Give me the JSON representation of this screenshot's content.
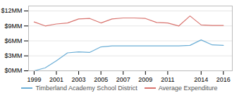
{
  "chart_data": {
    "type": "line",
    "x": [
      1999,
      2000,
      2001,
      2002,
      2003,
      2004,
      2005,
      2006,
      2007,
      2008,
      2009,
      2010,
      2011,
      2012,
      2013,
      2014,
      2015,
      2016
    ],
    "series": [
      {
        "name": "Timberland Academy School District",
        "color": "#6baed6",
        "values": [
          0,
          600000,
          2000000,
          3600000,
          3800000,
          3700000,
          4800000,
          5000000,
          5000000,
          5000000,
          5000000,
          5000000,
          5000000,
          5000000,
          5100000,
          6200000,
          5200000,
          5100000
        ]
      },
      {
        "name": "Average Expenditure",
        "color": "#d9736e",
        "values": [
          9800000,
          9000000,
          9400000,
          9600000,
          10400000,
          10500000,
          9600000,
          10400000,
          10600000,
          10600000,
          10500000,
          9700000,
          9600000,
          9000000,
          11000000,
          9200000,
          9100000,
          9100000
        ]
      }
    ],
    "xlim": [
      1998.5,
      2016.8
    ],
    "xticks": [
      1999,
      2001,
      2003,
      2005,
      2007,
      2009,
      2011,
      2014,
      2016
    ],
    "ylim": [
      0,
      13000000
    ],
    "yticks": [
      {
        "value": 0,
        "label": "$0MM"
      },
      {
        "value": 3000000,
        "label": "$3MM"
      },
      {
        "value": 6000000,
        "label": "$6MM"
      },
      {
        "value": 9000000,
        "label": "$9MM"
      },
      {
        "value": 12000000,
        "label": "$12MM"
      }
    ],
    "grid": "y",
    "legend": "bottom"
  }
}
